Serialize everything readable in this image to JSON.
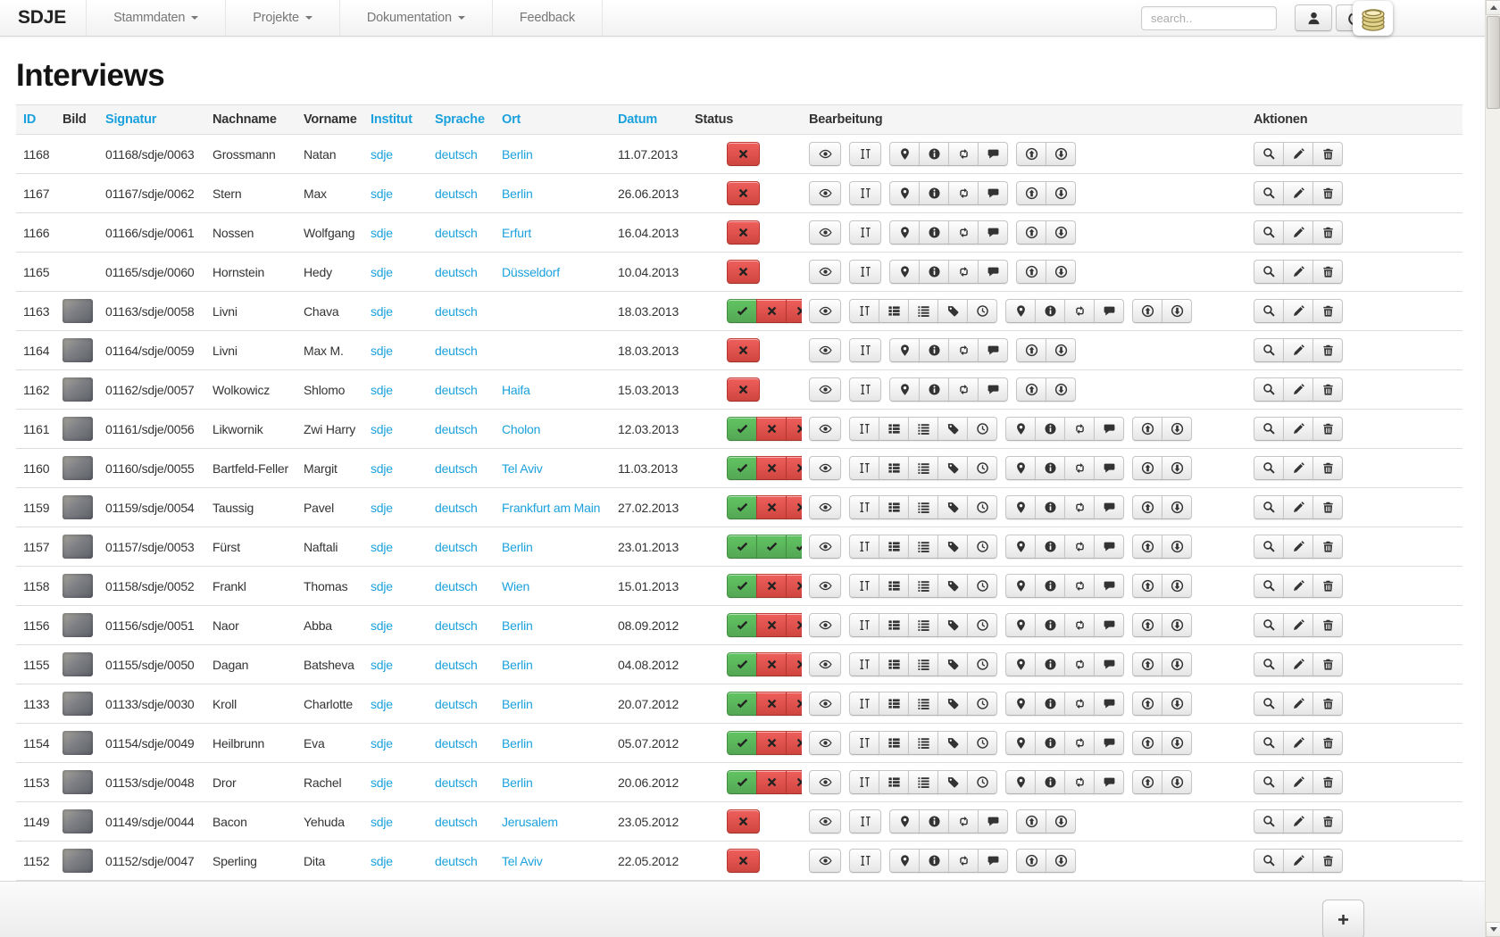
{
  "navbar": {
    "brand": "SDJE",
    "menus": [
      {
        "label": "Stammdaten",
        "caret": true
      },
      {
        "label": "Projekte",
        "caret": true
      },
      {
        "label": "Dokumentation",
        "caret": true
      },
      {
        "label": "Feedback",
        "caret": false
      }
    ],
    "search_placeholder": "search..",
    "icons": [
      "user-icon",
      "power-icon",
      "coins-icon"
    ]
  },
  "page": {
    "title": "Interviews"
  },
  "colors": {
    "link_blue": "#1ba1dd",
    "status_green": "#5cb85c",
    "status_red": "#d9534f",
    "navbar_text": "#777777"
  },
  "table": {
    "columns": [
      {
        "key": "id",
        "label": "ID",
        "sortable": true
      },
      {
        "key": "bild",
        "label": "Bild",
        "sortable": false
      },
      {
        "key": "signatur",
        "label": "Signatur",
        "sortable": true
      },
      {
        "key": "nachname",
        "label": "Nachname",
        "sortable": false
      },
      {
        "key": "vorname",
        "label": "Vorname",
        "sortable": false
      },
      {
        "key": "institut",
        "label": "Institut",
        "sortable": true
      },
      {
        "key": "sprache",
        "label": "Sprache",
        "sortable": true
      },
      {
        "key": "ort",
        "label": "Ort",
        "sortable": true
      },
      {
        "key": "datum",
        "label": "Datum",
        "sortable": true
      },
      {
        "key": "status",
        "label": "Status",
        "sortable": false
      },
      {
        "key": "bearbeitung",
        "label": "Bearbeitung",
        "sortable": false
      },
      {
        "key": "aktionen",
        "label": "Aktionen",
        "sortable": false
      }
    ],
    "action_sets": {
      "short": [
        [
          "eye"
        ],
        [
          "text-height"
        ],
        [
          "map-marker",
          "info",
          "retweet",
          "comment"
        ],
        [
          "circle-arrow-up",
          "circle-arrow-down"
        ]
      ],
      "extended": [
        [
          "eye"
        ],
        [
          "text-height",
          "th-list",
          "list",
          "tag",
          "clock"
        ],
        [
          "map-marker",
          "info",
          "retweet",
          "comment"
        ],
        [
          "circle-arrow-up",
          "circle-arrow-down"
        ]
      ]
    },
    "aktionen_buttons": [
      "search",
      "pencil",
      "trash"
    ],
    "rows": [
      {
        "id": "1168",
        "has_image": false,
        "signatur": "01168/sdje/0063",
        "nachname": "Grossmann",
        "vorname": "Natan",
        "institut": "sdje",
        "sprache": "deutsch",
        "ort": "Berlin",
        "datum": "11.07.2013",
        "status": [
          "x"
        ],
        "actions": "short"
      },
      {
        "id": "1167",
        "has_image": false,
        "signatur": "01167/sdje/0062",
        "nachname": "Stern",
        "vorname": "Max",
        "institut": "sdje",
        "sprache": "deutsch",
        "ort": "Berlin",
        "datum": "26.06.2013",
        "status": [
          "x"
        ],
        "actions": "short"
      },
      {
        "id": "1166",
        "has_image": false,
        "signatur": "01166/sdje/0061",
        "nachname": "Nossen",
        "vorname": "Wolfgang",
        "institut": "sdje",
        "sprache": "deutsch",
        "ort": "Erfurt",
        "datum": "16.04.2013",
        "status": [
          "x"
        ],
        "actions": "short"
      },
      {
        "id": "1165",
        "has_image": false,
        "signatur": "01165/sdje/0060",
        "nachname": "Hornstein",
        "vorname": "Hedy",
        "institut": "sdje",
        "sprache": "deutsch",
        "ort": "Düsseldorf",
        "datum": "10.04.2013",
        "status": [
          "x"
        ],
        "actions": "short"
      },
      {
        "id": "1163",
        "has_image": true,
        "signatur": "01163/sdje/0058",
        "nachname": "Livni",
        "vorname": "Chava",
        "institut": "sdje",
        "sprache": "deutsch",
        "ort": "",
        "datum": "18.03.2013",
        "status": [
          "check",
          "x",
          "x"
        ],
        "actions": "extended"
      },
      {
        "id": "1164",
        "has_image": true,
        "signatur": "01164/sdje/0059",
        "nachname": "Livni",
        "vorname": "Max M.",
        "institut": "sdje",
        "sprache": "deutsch",
        "ort": "",
        "datum": "18.03.2013",
        "status": [
          "x"
        ],
        "actions": "short"
      },
      {
        "id": "1162",
        "has_image": true,
        "signatur": "01162/sdje/0057",
        "nachname": "Wolkowicz",
        "vorname": "Shlomo",
        "institut": "sdje",
        "sprache": "deutsch",
        "ort": "Haifa",
        "datum": "15.03.2013",
        "status": [
          "x"
        ],
        "actions": "short"
      },
      {
        "id": "1161",
        "has_image": true,
        "signatur": "01161/sdje/0056",
        "nachname": "Likwornik",
        "vorname": "Zwi Harry",
        "institut": "sdje",
        "sprache": "deutsch",
        "ort": "Cholon",
        "datum": "12.03.2013",
        "status": [
          "check",
          "x",
          "x"
        ],
        "actions": "extended"
      },
      {
        "id": "1160",
        "has_image": true,
        "signatur": "01160/sdje/0055",
        "nachname": "Bartfeld-Feller",
        "vorname": "Margit",
        "institut": "sdje",
        "sprache": "deutsch",
        "ort": "Tel Aviv",
        "datum": "11.03.2013",
        "status": [
          "check",
          "x",
          "x"
        ],
        "actions": "extended"
      },
      {
        "id": "1159",
        "has_image": true,
        "signatur": "01159/sdje/0054",
        "nachname": "Taussig",
        "vorname": "Pavel",
        "institut": "sdje",
        "sprache": "deutsch",
        "ort": "Frankfurt am Main",
        "datum": "27.02.2013",
        "status": [
          "check",
          "x",
          "x"
        ],
        "actions": "extended"
      },
      {
        "id": "1157",
        "has_image": true,
        "signatur": "01157/sdje/0053",
        "nachname": "Fürst",
        "vorname": "Naftali",
        "institut": "sdje",
        "sprache": "deutsch",
        "ort": "Berlin",
        "datum": "23.01.2013",
        "status": [
          "check",
          "check",
          "check"
        ],
        "actions": "extended"
      },
      {
        "id": "1158",
        "has_image": true,
        "signatur": "01158/sdje/0052",
        "nachname": "Frankl",
        "vorname": "Thomas",
        "institut": "sdje",
        "sprache": "deutsch",
        "ort": "Wien",
        "datum": "15.01.2013",
        "status": [
          "check",
          "x",
          "x"
        ],
        "actions": "extended"
      },
      {
        "id": "1156",
        "has_image": true,
        "signatur": "01156/sdje/0051",
        "nachname": "Naor",
        "vorname": "Abba",
        "institut": "sdje",
        "sprache": "deutsch",
        "ort": "Berlin",
        "datum": "08.09.2012",
        "status": [
          "check",
          "x",
          "x"
        ],
        "actions": "extended"
      },
      {
        "id": "1155",
        "has_image": true,
        "signatur": "01155/sdje/0050",
        "nachname": "Dagan",
        "vorname": "Batsheva",
        "institut": "sdje",
        "sprache": "deutsch",
        "ort": "Berlin",
        "datum": "04.08.2012",
        "status": [
          "check",
          "x",
          "x"
        ],
        "actions": "extended"
      },
      {
        "id": "1133",
        "has_image": true,
        "signatur": "01133/sdje/0030",
        "nachname": "Kroll",
        "vorname": "Charlotte",
        "institut": "sdje",
        "sprache": "deutsch",
        "ort": "Berlin",
        "datum": "20.07.2012",
        "status": [
          "check",
          "x",
          "x"
        ],
        "actions": "extended"
      },
      {
        "id": "1154",
        "has_image": true,
        "signatur": "01154/sdje/0049",
        "nachname": "Heilbrunn",
        "vorname": "Eva",
        "institut": "sdje",
        "sprache": "deutsch",
        "ort": "Berlin",
        "datum": "05.07.2012",
        "status": [
          "check",
          "x",
          "x"
        ],
        "actions": "extended"
      },
      {
        "id": "1153",
        "has_image": true,
        "signatur": "01153/sdje/0048",
        "nachname": "Dror",
        "vorname": "Rachel",
        "institut": "sdje",
        "sprache": "deutsch",
        "ort": "Berlin",
        "datum": "20.06.2012",
        "status": [
          "check",
          "x",
          "x"
        ],
        "actions": "extended"
      },
      {
        "id": "1149",
        "has_image": true,
        "signatur": "01149/sdje/0044",
        "nachname": "Bacon",
        "vorname": "Yehuda",
        "institut": "sdje",
        "sprache": "deutsch",
        "ort": "Jerusalem",
        "datum": "23.05.2012",
        "status": [
          "x"
        ],
        "actions": "short"
      },
      {
        "id": "1152",
        "has_image": true,
        "signatur": "01152/sdje/0047",
        "nachname": "Sperling",
        "vorname": "Dita",
        "institut": "sdje",
        "sprache": "deutsch",
        "ort": "Tel Aviv",
        "datum": "22.05.2012",
        "status": [
          "x"
        ],
        "actions": "short"
      }
    ]
  },
  "footer": {
    "add_button": "plus"
  }
}
